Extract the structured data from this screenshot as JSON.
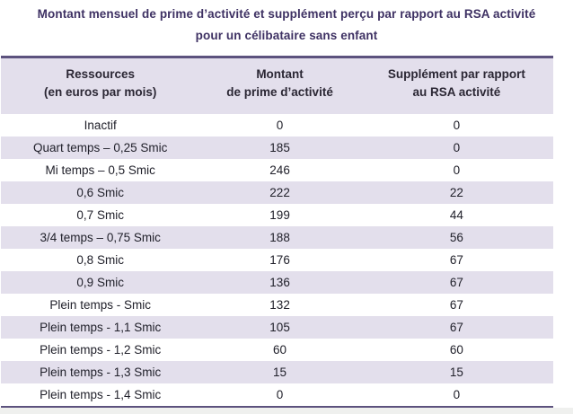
{
  "title": {
    "line1": "Montant mensuel de prime d’activité et supplément perçu par rapport au RSA activité",
    "line2": "pour un célibataire sans enfant"
  },
  "colors": {
    "title_text": "#3e3163",
    "table_border": "#5c527e",
    "row_stripe": "#e3dfec",
    "body_text": "#21212b"
  },
  "table": {
    "headers": [
      {
        "line1": "Ressources",
        "line2": "(en euros par mois)"
      },
      {
        "line1": "Montant",
        "line2": "de prime d’activité"
      },
      {
        "line1": "Supplément par rapport",
        "line2": "au RSA activité"
      }
    ],
    "rows": [
      [
        "Inactif",
        "0",
        "0"
      ],
      [
        "Quart temps – 0,25 Smic",
        "185",
        "0"
      ],
      [
        "Mi temps – 0,5 Smic",
        "246",
        "0"
      ],
      [
        "0,6 Smic",
        "222",
        "22"
      ],
      [
        "0,7 Smic",
        "199",
        "44"
      ],
      [
        "3/4 temps – 0,75 Smic",
        "188",
        "56"
      ],
      [
        "0,8 Smic",
        "176",
        "67"
      ],
      [
        "0,9 Smic",
        "136",
        "67"
      ],
      [
        "Plein temps - Smic",
        "132",
        "67"
      ],
      [
        "Plein temps - 1,1 Smic",
        "105",
        "67"
      ],
      [
        "Plein temps - 1,2 Smic",
        "60",
        "60"
      ],
      [
        "Plein temps - 1,3 Smic",
        "15",
        "15"
      ],
      [
        "Plein temps - 1,4 Smic",
        "0",
        "0"
      ]
    ]
  },
  "chart_data": {
    "type": "table",
    "title": "Montant mensuel de prime d’activité et supplément perçu par rapport au RSA activité pour un célibataire sans enfant",
    "columns": [
      "Ressources (en euros par mois)",
      "Montant de prime d’activité",
      "Supplément par rapport au RSA activité"
    ],
    "rows": [
      [
        "Inactif",
        0,
        0
      ],
      [
        "Quart temps – 0,25 Smic",
        185,
        0
      ],
      [
        "Mi temps – 0,5 Smic",
        246,
        0
      ],
      [
        "0,6 Smic",
        222,
        22
      ],
      [
        "0,7 Smic",
        199,
        44
      ],
      [
        "3/4 temps – 0,75 Smic",
        188,
        56
      ],
      [
        "0,8 Smic",
        176,
        67
      ],
      [
        "0,9 Smic",
        136,
        67
      ],
      [
        "Plein temps - Smic",
        132,
        67
      ],
      [
        "Plein temps - 1,1 Smic",
        105,
        67
      ],
      [
        "Plein temps - 1,2 Smic",
        60,
        60
      ],
      [
        "Plein temps - 1,3 Smic",
        15,
        15
      ],
      [
        "Plein temps - 1,4 Smic",
        0,
        0
      ]
    ]
  }
}
